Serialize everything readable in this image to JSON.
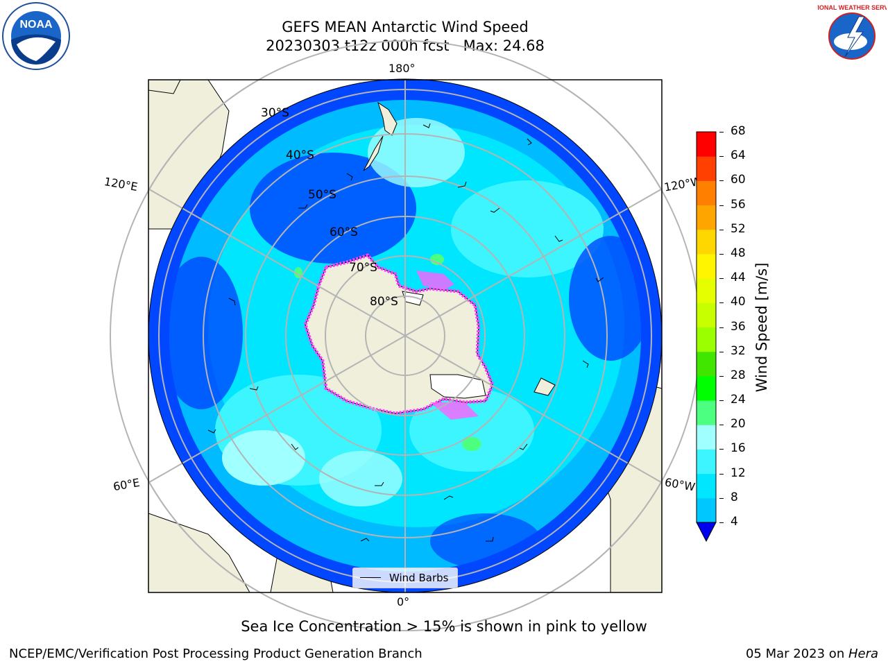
{
  "title": {
    "line1": "GEFS MEAN Antarctic Wind Speed",
    "line2": "20230303 t12z 000h fcst   Max: 24.68"
  },
  "map_labels": {
    "lon_180": "180°",
    "lon_0": "0°",
    "lon_120e": "120°E",
    "lon_120w": "120°W",
    "lon_60e": "60°E",
    "lon_60w": "60°W",
    "lat_30s": "30°S",
    "lat_40s": "40°S",
    "lat_50s": "50°S",
    "lat_60s": "60°S",
    "lat_70s": "70°S",
    "lat_80s": "80°S"
  },
  "legend": {
    "label": "Wind Barbs"
  },
  "colorbar": {
    "title": "Wind Speed [m/s]",
    "ticks": [
      "4",
      "8",
      "12",
      "16",
      "20",
      "24",
      "28",
      "32",
      "36",
      "40",
      "44",
      "48",
      "52",
      "56",
      "60",
      "64",
      "68"
    ],
    "colors": [
      "#0047ff",
      "#00c8ff",
      "#00e6ff",
      "#3cf5ff",
      "#a0ffff",
      "#4dff80",
      "#00ff00",
      "#40e600",
      "#9cff00",
      "#c8ff00",
      "#e6ff00",
      "#fff500",
      "#ffd700",
      "#ffa500",
      "#ff7f00",
      "#ff4000",
      "#ff0000"
    ],
    "under_color": "#0000ee"
  },
  "caption": "Sea Ice Concentration > 15% is shown in pink to yellow",
  "footer": {
    "left": "NCEP/EMC/Verification Post Processing Product Generation Branch",
    "date": "05 Mar 2023 on ",
    "machine": "Hera"
  },
  "logos": {
    "noaa_text": "NOAA",
    "nws_text": "NATIONAL WEATHER SERVICE"
  }
}
